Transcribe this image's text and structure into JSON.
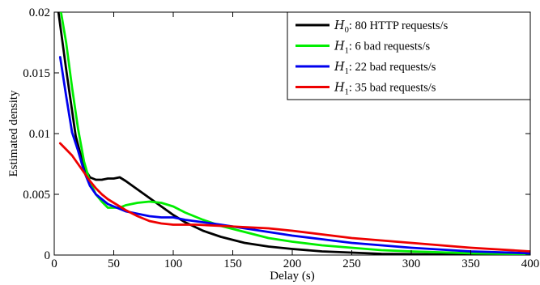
{
  "chart_data": {
    "type": "line",
    "title": "",
    "xlabel": "Delay (s)",
    "ylabel": "Estimated density",
    "xlim": [
      0,
      400
    ],
    "ylim": [
      0,
      0.02
    ],
    "xticks": [
      "0",
      "50",
      "100",
      "150",
      "200",
      "250",
      "300",
      "350",
      "400"
    ],
    "yticks": [
      "0",
      "0.005",
      "0.01",
      "0.015",
      "0.02"
    ],
    "grid": false,
    "legend_position": "top-right",
    "series": [
      {
        "name": "H0: 80 HTTP requests/s",
        "legend": {
          "hyp": "H",
          "sub": "0",
          "text": ": 80 HTTP requests/s"
        },
        "color": "#000000",
        "x": [
          3,
          10,
          18,
          25,
          30,
          35,
          40,
          45,
          50,
          55,
          60,
          70,
          80,
          90,
          100,
          110,
          125,
          140,
          160,
          180,
          200,
          225,
          250,
          275,
          300,
          350,
          400
        ],
        "y": [
          0.0204,
          0.0153,
          0.0098,
          0.0072,
          0.0064,
          0.0062,
          0.0062,
          0.0063,
          0.0063,
          0.0064,
          0.0061,
          0.0054,
          0.0047,
          0.004,
          0.0033,
          0.0027,
          0.002,
          0.0015,
          0.001,
          0.0007,
          0.0005,
          0.0003,
          0.0002,
          0.0001,
          7e-05,
          3e-05,
          1e-05
        ]
      },
      {
        "name": "H1: 6 bad requests/s",
        "legend": {
          "hyp": "H",
          "sub": "1",
          "text": ": 6 bad requests/s"
        },
        "color": "#00ee00",
        "x": [
          5,
          10,
          15,
          20,
          25,
          30,
          35,
          40,
          45,
          50,
          55,
          60,
          70,
          80,
          90,
          100,
          110,
          125,
          140,
          160,
          180,
          200,
          225,
          250,
          275,
          300,
          350,
          400
        ],
        "y": [
          0.0204,
          0.0175,
          0.0138,
          0.0104,
          0.0077,
          0.006,
          0.005,
          0.0044,
          0.0039,
          0.0039,
          0.0039,
          0.0041,
          0.0043,
          0.0044,
          0.0043,
          0.004,
          0.0035,
          0.0029,
          0.0024,
          0.0019,
          0.0014,
          0.0011,
          0.0008,
          0.0006,
          0.0004,
          0.0003,
          0.00015,
          7e-05
        ]
      },
      {
        "name": "H1: 22 bad requests/s",
        "legend": {
          "hyp": "H",
          "sub": "1",
          "text": ": 22 bad requests/s"
        },
        "color": "#0000ee",
        "x": [
          5,
          10,
          15,
          20,
          25,
          30,
          35,
          40,
          45,
          50,
          55,
          60,
          70,
          80,
          90,
          100,
          110,
          125,
          140,
          160,
          180,
          200,
          225,
          250,
          275,
          300,
          350,
          400
        ],
        "y": [
          0.0163,
          0.0131,
          0.0101,
          0.0086,
          0.0069,
          0.0057,
          0.005,
          0.0046,
          0.0042,
          0.004,
          0.0038,
          0.0036,
          0.0034,
          0.0032,
          0.0031,
          0.0031,
          0.0029,
          0.0027,
          0.0025,
          0.0022,
          0.0019,
          0.0016,
          0.0013,
          0.001,
          0.0008,
          0.0006,
          0.0003,
          0.00015
        ]
      },
      {
        "name": "H1: 35 bad requests/s",
        "legend": {
          "hyp": "H",
          "sub": "1",
          "text": ": 35 bad requests/s"
        },
        "color": "#ee0000",
        "x": [
          5,
          10,
          15,
          20,
          25,
          30,
          35,
          40,
          45,
          50,
          55,
          60,
          70,
          80,
          90,
          100,
          110,
          120,
          140,
          160,
          180,
          200,
          225,
          250,
          275,
          300,
          350,
          400
        ],
        "y": [
          0.0092,
          0.0087,
          0.0082,
          0.0075,
          0.0068,
          0.0061,
          0.0055,
          0.005,
          0.0046,
          0.0043,
          0.004,
          0.0037,
          0.0032,
          0.0028,
          0.0026,
          0.0025,
          0.0025,
          0.0025,
          0.0024,
          0.0023,
          0.0022,
          0.002,
          0.0017,
          0.0014,
          0.0012,
          0.001,
          0.0006,
          0.0003
        ]
      }
    ]
  }
}
